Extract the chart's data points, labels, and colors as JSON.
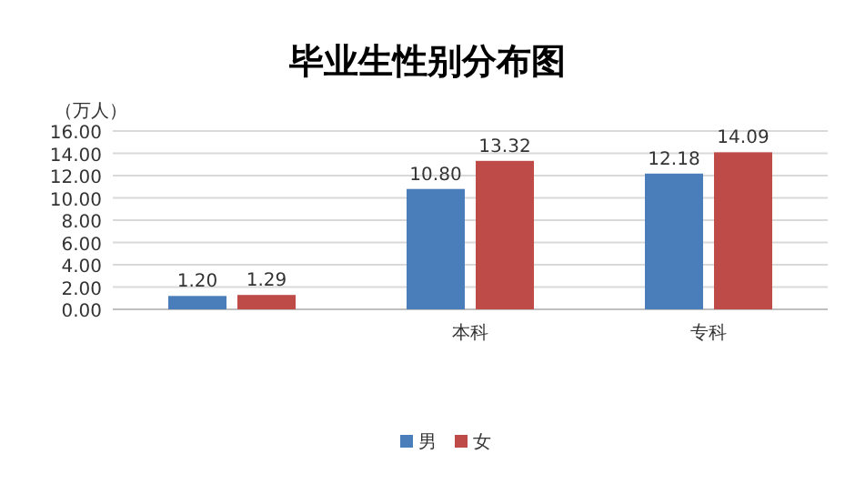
{
  "chart_data": {
    "type": "bar",
    "title": "毕业生性别分布图",
    "ylabel": "（万人）",
    "categories": [
      null,
      "本科",
      "专科"
    ],
    "series": [
      {
        "name": "男",
        "color": "#4a7ebb",
        "values": [
          1.2,
          10.8,
          12.18
        ],
        "value_labels": [
          "1.20",
          "10.80",
          "12.18"
        ]
      },
      {
        "name": "女",
        "color": "#be4b48",
        "values": [
          1.29,
          13.32,
          14.09
        ],
        "value_labels": [
          "1.29",
          "13.32",
          "14.09"
        ]
      }
    ],
    "ylim": [
      0,
      16
    ],
    "yticks": [
      {
        "value": 0,
        "label": "0.00"
      },
      {
        "value": 2,
        "label": "2.00"
      },
      {
        "value": 4,
        "label": "4.00"
      },
      {
        "value": 6,
        "label": "6.00"
      },
      {
        "value": 8,
        "label": "8.00"
      },
      {
        "value": 10,
        "label": "10.00"
      },
      {
        "value": 12,
        "label": "12.00"
      },
      {
        "value": 14,
        "label": "14.00"
      },
      {
        "value": 16,
        "label": "16.00"
      }
    ],
    "grid": "y",
    "legend": "bottom"
  }
}
